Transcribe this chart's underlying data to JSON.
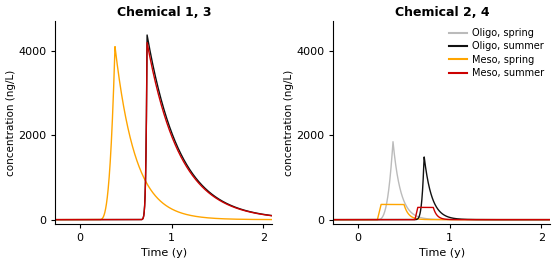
{
  "title_left": "Chemical 1, 3",
  "title_right": "Chemical 2, 4",
  "xlabel": "Time (y)",
  "ylabel": "concentration (ng/L)",
  "xlim": [
    -0.27,
    2.1
  ],
  "ylim": [
    -100,
    4700
  ],
  "yticks": [
    0,
    2000,
    4000
  ],
  "xticks": [
    0,
    1,
    2
  ],
  "colors": {
    "oligo_spring": "#bbbbbb",
    "oligo_summer": "#111111",
    "meso_spring": "#FFA500",
    "meso_summer": "#CC0000"
  },
  "legend_labels": [
    "Oligo, spring",
    "Oligo, summer",
    "Meso, spring",
    "Meso, summer"
  ],
  "panel_left": {
    "meso_spring": {
      "peak": 4100,
      "peak_t": 0.38,
      "rise_start": 0.21,
      "decay_rate": 4.5,
      "rise_power": 3.0
    },
    "oligo_summer": {
      "peak": 4380,
      "peak_t": 0.73,
      "rise_start": 0.635,
      "decay_rate": 2.8,
      "rise_power": 8.0
    },
    "meso_summer": {
      "peak": 4200,
      "peak_t": 0.73,
      "rise_start": 0.635,
      "decay_rate": 2.8,
      "rise_power": 8.0
    }
  },
  "panel_right": {
    "oligo_spring": {
      "peak": 1850,
      "peak_t": 0.38,
      "rise_start": 0.21,
      "decay_rate": 12.0,
      "rise_power": 3.0
    },
    "meso_spring": {
      "flat_peak": 360,
      "flat_start": 0.25,
      "flat_end": 0.5,
      "rise_start": 0.21,
      "decay_rate": 20.0
    },
    "oligo_summer": {
      "peak": 1500,
      "peak_t": 0.72,
      "rise_start": 0.6,
      "decay_rate": 12.0,
      "rise_power": 5.0
    },
    "meso_summer": {
      "flat_peak": 290,
      "flat_start": 0.65,
      "flat_end": 0.82,
      "rise_start": 0.62,
      "decay_rate": 25.0
    }
  }
}
